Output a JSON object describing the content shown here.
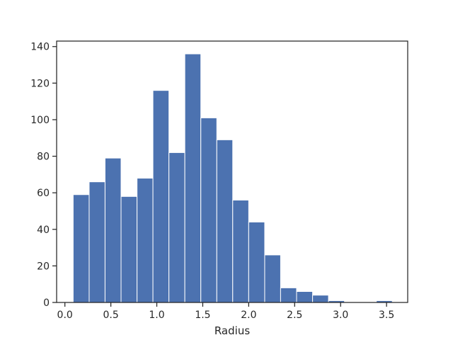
{
  "chart_data": {
    "type": "bar",
    "subtype": "histogram",
    "title": "",
    "xlabel": "Radius",
    "ylabel": "",
    "xlim": [
      -0.09,
      3.73
    ],
    "ylim": [
      0,
      143
    ],
    "xticks": [
      0.0,
      0.5,
      1.0,
      1.5,
      2.0,
      2.5,
      3.0,
      3.5
    ],
    "xtick_labels": [
      "0.0",
      "0.5",
      "1.0",
      "1.5",
      "2.0",
      "2.5",
      "3.0",
      "3.5"
    ],
    "yticks": [
      0,
      20,
      40,
      60,
      80,
      100,
      120,
      140
    ],
    "ytick_labels": [
      "0",
      "20",
      "40",
      "60",
      "80",
      "100",
      "120",
      "140"
    ],
    "bin_edges": [
      0.09,
      0.264,
      0.437,
      0.611,
      0.785,
      0.958,
      1.132,
      1.305,
      1.479,
      1.653,
      1.826,
      2.0,
      2.174,
      2.347,
      2.521,
      2.695,
      2.868,
      3.042,
      3.215,
      3.389,
      3.562
    ],
    "counts": [
      59,
      66,
      79,
      58,
      68,
      116,
      82,
      136,
      101,
      89,
      56,
      44,
      26,
      8,
      6,
      4,
      1,
      0,
      0,
      1
    ],
    "bar_color": "#4c72b0",
    "grid": false,
    "legend": "none"
  }
}
